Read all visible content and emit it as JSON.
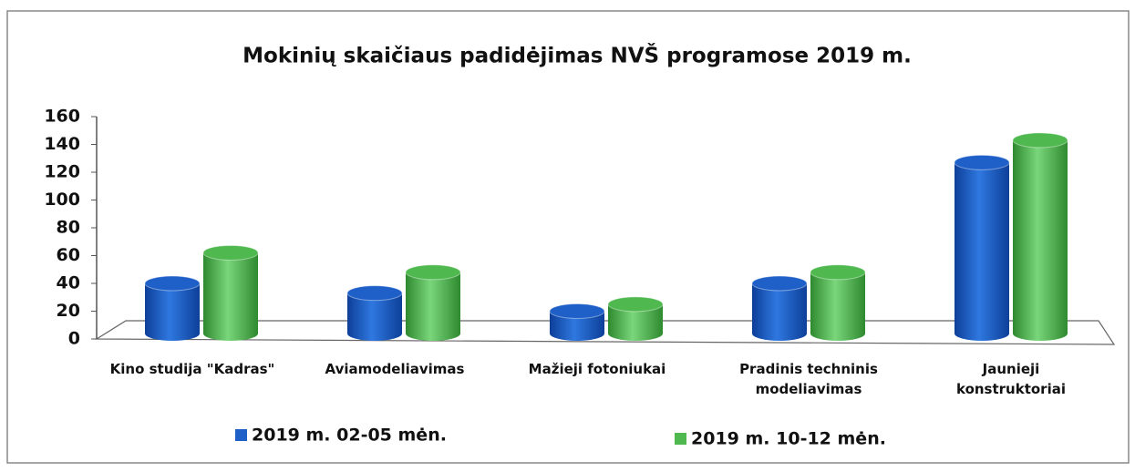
{
  "chart_data": {
    "type": "bar3d",
    "title": "Mokinių skaičiaus padidėjimas NVŠ programose 2019 m.",
    "categories": [
      "Kino studija \"Kadras\"",
      "Aviamodeliavimas",
      "Mažieji fotoniukai",
      "Pradinis techninis modeliavimas",
      "Jaunieji konstruktoriai"
    ],
    "series": [
      {
        "name": "2019 m. 02-05 mėn.",
        "color": "#1f5fc8",
        "values": [
          40,
          33,
          20,
          40,
          127
        ]
      },
      {
        "name": "2019 m. 10-12 mėn.",
        "color": "#4fb84f",
        "values": [
          62,
          48,
          25,
          48,
          143
        ]
      }
    ],
    "ylim": [
      0,
      160
    ],
    "yticks": [
      0,
      20,
      40,
      60,
      80,
      100,
      120,
      140,
      160
    ]
  }
}
